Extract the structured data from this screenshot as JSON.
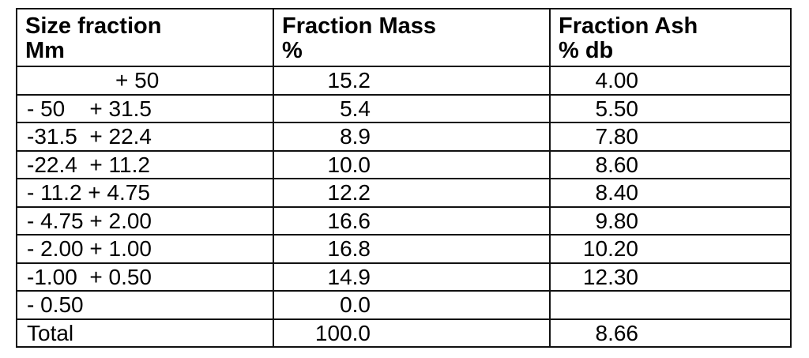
{
  "table": {
    "header": [
      [
        "Size fraction",
        "Mm"
      ],
      [
        "Fraction Mass",
        "%"
      ],
      [
        "Fraction Ash",
        "% db"
      ]
    ],
    "rows": [
      [
        "+ 50",
        "15.2",
        "4.00"
      ],
      [
        "- 50    + 31.5",
        "5.4",
        "5.50"
      ],
      [
        "-31.5  + 22.4",
        "8.9",
        "7.80"
      ],
      [
        "-22.4  + 11.2",
        "10.0",
        "8.60"
      ],
      [
        "- 11.2 + 4.75",
        "12.2",
        "8.40"
      ],
      [
        "- 4.75 + 2.00",
        "16.6",
        "9.80"
      ],
      [
        "- 2.00 + 1.00",
        "16.8",
        "10.20"
      ],
      [
        "-1.00  + 0.50",
        "14.9",
        "12.30"
      ],
      [
        "- 0.50",
        "0.0",
        null
      ],
      [
        "Total",
        "100.0",
        "8.66"
      ]
    ]
  }
}
